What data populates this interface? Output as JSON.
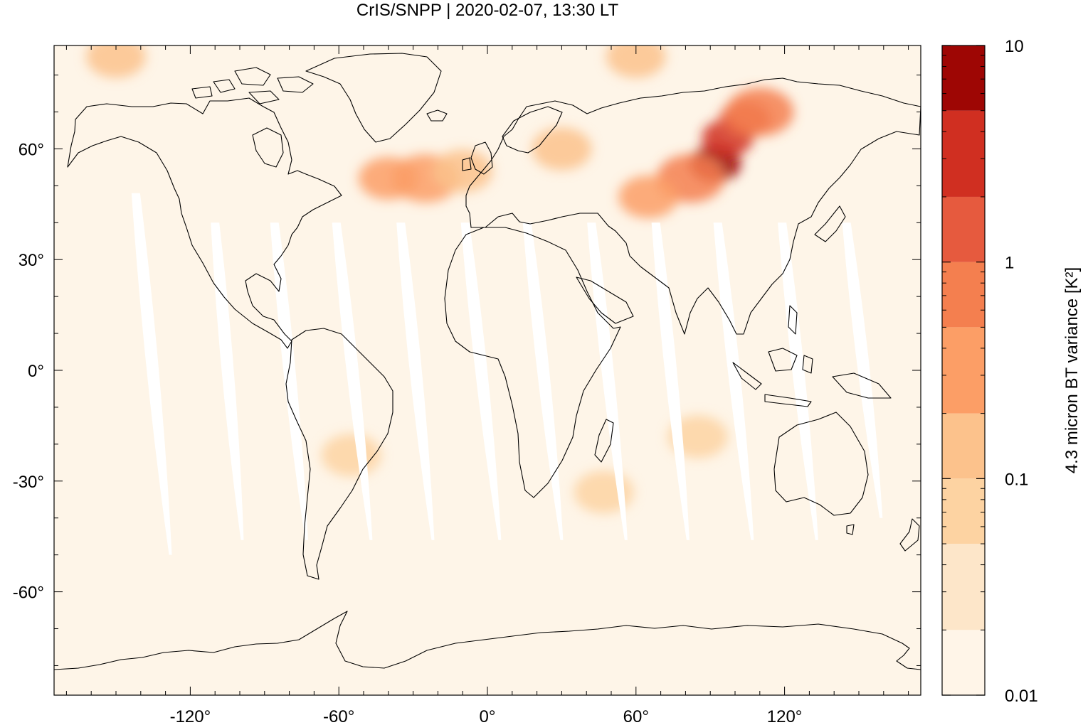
{
  "title": "CrIS/SNPP | 2020-02-07, 13:30 LT",
  "map": {
    "projection": "equirectangular",
    "lon_range": [
      -175,
      175
    ],
    "lat_range": [
      -88,
      88
    ],
    "x_ticks": [
      {
        "value": -120,
        "label": "-120°"
      },
      {
        "value": -60,
        "label": "-60°"
      },
      {
        "value": 0,
        "label": "0°"
      },
      {
        "value": 60,
        "label": "60°"
      },
      {
        "value": 120,
        "label": "120°"
      }
    ],
    "y_ticks": [
      {
        "value": 60,
        "label": "60°"
      },
      {
        "value": 30,
        "label": "30°"
      },
      {
        "value": 0,
        "label": "0°"
      },
      {
        "value": -30,
        "label": "-30°"
      },
      {
        "value": -60,
        "label": "-60°"
      }
    ],
    "background_fill": "#fef5e8",
    "no_data_fill": "#ffffff",
    "coastline_color": "#000000"
  },
  "colorbar": {
    "label": "4.3 micron BT variance [K²]",
    "scale": "log",
    "range": [
      0.01,
      10
    ],
    "tick_labels": [
      {
        "value": 10,
        "label": "10"
      },
      {
        "value": 1,
        "label": "1"
      },
      {
        "value": 0.1,
        "label": "0.1"
      },
      {
        "value": 0.01,
        "label": "0.01"
      }
    ],
    "bins": [
      {
        "from": 0.01,
        "to": 0.02,
        "color": "#fff5e8"
      },
      {
        "from": 0.02,
        "to": 0.05,
        "color": "#fde6c9"
      },
      {
        "from": 0.05,
        "to": 0.1,
        "color": "#fdd3a2"
      },
      {
        "from": 0.1,
        "to": 0.2,
        "color": "#fcc28c"
      },
      {
        "from": 0.2,
        "to": 0.5,
        "color": "#fc9e66"
      },
      {
        "from": 0.5,
        "to": 1,
        "color": "#f47f4f"
      },
      {
        "from": 1,
        "to": 2,
        "color": "#e65a3e"
      },
      {
        "from": 2,
        "to": 5,
        "color": "#d02f21"
      },
      {
        "from": 5,
        "to": 10,
        "color": "#9e0604"
      }
    ]
  },
  "gaps": [
    {
      "lon_north": -142,
      "lon_south": -128,
      "lat_north": 48,
      "lat_south": -50
    },
    {
      "lon_north": -110,
      "lon_south": -99,
      "lat_north": 40,
      "lat_south": -46
    },
    {
      "lon_north": -86,
      "lon_south": -73,
      "lat_north": 40,
      "lat_south": -46
    },
    {
      "lon_north": -61,
      "lon_south": -47,
      "lat_north": 40,
      "lat_south": -46
    },
    {
      "lon_north": -35,
      "lon_south": -22,
      "lat_north": 40,
      "lat_south": -46
    },
    {
      "lon_north": -9,
      "lon_south": 5,
      "lat_north": 40,
      "lat_south": -46
    },
    {
      "lon_north": 16,
      "lon_south": 30,
      "lat_north": 40,
      "lat_south": -46
    },
    {
      "lon_north": 42,
      "lon_south": 56,
      "lat_north": 40,
      "lat_south": -46
    },
    {
      "lon_north": 68,
      "lon_south": 81,
      "lat_north": 40,
      "lat_south": -46
    },
    {
      "lon_north": 93,
      "lon_south": 107,
      "lat_north": 40,
      "lat_south": -46
    },
    {
      "lon_north": 119,
      "lon_south": 133,
      "lat_north": 40,
      "lat_south": -46
    },
    {
      "lon_north": 145,
      "lon_south": 159,
      "lat_north": 40,
      "lat_south": -40
    }
  ],
  "hotspots": [
    {
      "lon": 92,
      "lat": 56,
      "value": 5.0
    },
    {
      "lon": 97,
      "lat": 63,
      "value": 2.0
    },
    {
      "lon": 104,
      "lat": 68,
      "value": 1.5
    },
    {
      "lon": 82,
      "lat": 52,
      "value": 0.8
    },
    {
      "lon": 110,
      "lat": 70,
      "value": 0.6
    },
    {
      "lon": -25,
      "lat": 52,
      "value": 0.3
    },
    {
      "lon": -40,
      "lat": 52,
      "value": 0.2
    },
    {
      "lon": -10,
      "lat": 54,
      "value": 0.15
    },
    {
      "lon": 65,
      "lat": 47,
      "value": 0.2
    },
    {
      "lon": 30,
      "lat": 60,
      "value": 0.12
    },
    {
      "lon": -150,
      "lat": 85,
      "value": 0.12
    },
    {
      "lon": 60,
      "lat": 85,
      "value": 0.15
    },
    {
      "lon": -55,
      "lat": -23,
      "value": 0.08
    },
    {
      "lon": 47,
      "lat": -33,
      "value": 0.08
    },
    {
      "lon": 85,
      "lat": -18,
      "value": 0.06
    }
  ]
}
